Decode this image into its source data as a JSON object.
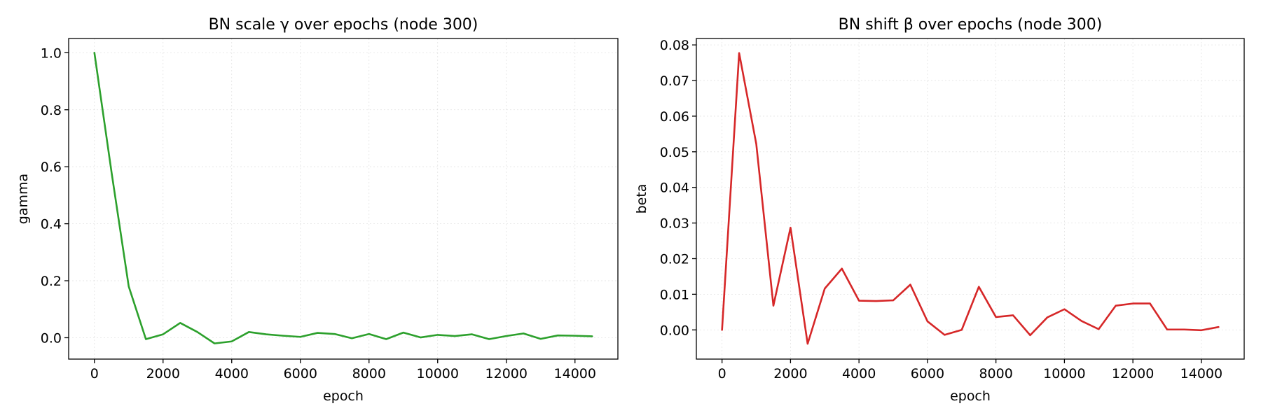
{
  "chart_data": [
    {
      "type": "line",
      "title": "BN scale γ over epochs (node 300)",
      "xlabel": "epoch",
      "ylabel": "gamma",
      "xlim": [
        -750,
        15250
      ],
      "ylim": [
        -0.075,
        1.05
      ],
      "xticks": [
        0,
        2000,
        4000,
        6000,
        8000,
        10000,
        12000,
        14000
      ],
      "yticks": [
        0.0,
        0.2,
        0.4,
        0.6,
        0.8,
        1.0
      ],
      "ytick_labels": [
        "0.0",
        "0.2",
        "0.4",
        "0.6",
        "0.8",
        "1.0"
      ],
      "grid": true,
      "color": "#2ca02c",
      "series": [
        {
          "x": [
            0,
            500,
            1000,
            1500,
            2000,
            2500,
            3000,
            3500,
            4000,
            4500,
            5000,
            5500,
            6000,
            6500,
            7000,
            7500,
            8000,
            8500,
            9000,
            9500,
            10000,
            10500,
            11000,
            11500,
            12000,
            12500,
            13000,
            13500,
            14000,
            14500
          ],
          "values": [
            1.0,
            0.58,
            0.18,
            -0.005,
            0.012,
            0.052,
            0.02,
            -0.02,
            -0.013,
            0.02,
            0.012,
            0.007,
            0.003,
            0.017,
            0.013,
            -0.002,
            0.013,
            -0.005,
            0.018,
            0.001,
            0.01,
            0.006,
            0.012,
            -0.005,
            0.006,
            0.015,
            -0.004,
            0.008,
            0.007,
            0.005
          ]
        }
      ]
    },
    {
      "type": "line",
      "title": "BN shift β over epochs (node 300)",
      "xlabel": "epoch",
      "ylabel": "beta",
      "xlim": [
        -750,
        15250
      ],
      "ylim": [
        -0.0082,
        0.0818
      ],
      "xticks": [
        0,
        2000,
        4000,
        6000,
        8000,
        10000,
        12000,
        14000
      ],
      "yticks": [
        0.0,
        0.01,
        0.02,
        0.03,
        0.04,
        0.05,
        0.06,
        0.07,
        0.08
      ],
      "ytick_labels": [
        "0.00",
        "0.01",
        "0.02",
        "0.03",
        "0.04",
        "0.05",
        "0.06",
        "0.07",
        "0.08"
      ],
      "grid": true,
      "color": "#d62728",
      "series": [
        {
          "x": [
            0,
            500,
            1000,
            1500,
            2000,
            2500,
            3000,
            3500,
            4000,
            4500,
            5000,
            5500,
            6000,
            6500,
            7000,
            7500,
            8000,
            8500,
            9000,
            9500,
            10000,
            10500,
            11000,
            11500,
            12000,
            12500,
            13000,
            13500,
            14000,
            14500
          ],
          "values": [
            0.0,
            0.0777,
            0.0522,
            0.0068,
            0.0287,
            -0.0039,
            0.0116,
            0.0172,
            0.0082,
            0.0081,
            0.0083,
            0.0127,
            0.0024,
            -0.0014,
            0.0,
            0.0121,
            0.0036,
            0.0041,
            -0.0015,
            0.0035,
            0.0058,
            0.0025,
            0.0002,
            0.0068,
            0.0074,
            0.0074,
            0.0001,
            0.0001,
            -0.0001,
            0.0008
          ]
        }
      ]
    }
  ]
}
